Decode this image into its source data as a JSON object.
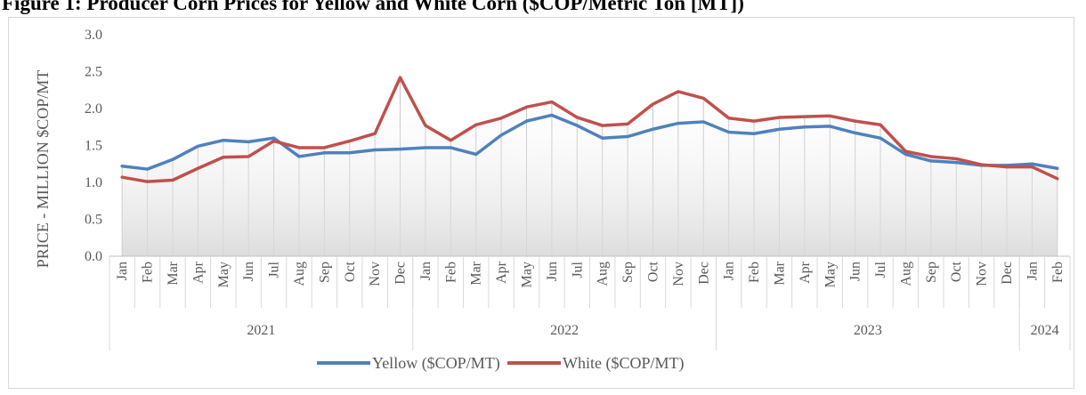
{
  "figure_title": "Figure 1: Producer Corn Prices for Yellow and White Corn ($COP/Metric Ton [MT])",
  "chart_data": {
    "type": "area",
    "ylabel": "PRICE - MILLION $COP/MT",
    "ylim": [
      0,
      3.0
    ],
    "yticks": [
      "0.0",
      "0.5",
      "1.0",
      "1.5",
      "2.0",
      "2.5",
      "3.0"
    ],
    "grid": true,
    "legend_position": "bottom",
    "categories": [
      "Jan",
      "Feb",
      "Mar",
      "Apr",
      "May",
      "Jun",
      "Jul",
      "Aug",
      "Sep",
      "Oct",
      "Nov",
      "Dec",
      "Jan",
      "Feb",
      "Mar",
      "Apr",
      "May",
      "Jun",
      "Jul",
      "Aug",
      "Sep",
      "Oct",
      "Nov",
      "Dec",
      "Jan",
      "Feb",
      "Mar",
      "Apr",
      "May",
      "Jun",
      "Jul",
      "Aug",
      "Sep",
      "Oct",
      "Nov",
      "Dec",
      "Jan",
      "Feb"
    ],
    "year_groups": [
      {
        "label": "2021",
        "count": 12
      },
      {
        "label": "2022",
        "count": 12
      },
      {
        "label": "2023",
        "count": 12
      },
      {
        "label": "2024",
        "count": 2
      }
    ],
    "series": [
      {
        "name": "Yellow ($COP/MT)",
        "color": "#4f81bd",
        "values": [
          1.22,
          1.18,
          1.31,
          1.49,
          1.57,
          1.55,
          1.6,
          1.35,
          1.4,
          1.4,
          1.44,
          1.45,
          1.47,
          1.47,
          1.38,
          1.64,
          1.83,
          1.91,
          1.77,
          1.6,
          1.62,
          1.72,
          1.8,
          1.82,
          1.68,
          1.66,
          1.72,
          1.75,
          1.76,
          1.67,
          1.6,
          1.38,
          1.29,
          1.27,
          1.23,
          1.23,
          1.25,
          1.19
        ]
      },
      {
        "name": "White ($COP/MT)",
        "color": "#c0504d",
        "values": [
          1.07,
          1.01,
          1.03,
          1.19,
          1.34,
          1.35,
          1.56,
          1.47,
          1.47,
          1.56,
          1.66,
          2.42,
          1.77,
          1.57,
          1.78,
          1.87,
          2.02,
          2.09,
          1.88,
          1.77,
          1.79,
          2.06,
          2.23,
          2.14,
          1.87,
          1.83,
          1.88,
          1.89,
          1.9,
          1.83,
          1.78,
          1.42,
          1.35,
          1.32,
          1.24,
          1.21,
          1.21,
          1.05
        ]
      }
    ]
  }
}
